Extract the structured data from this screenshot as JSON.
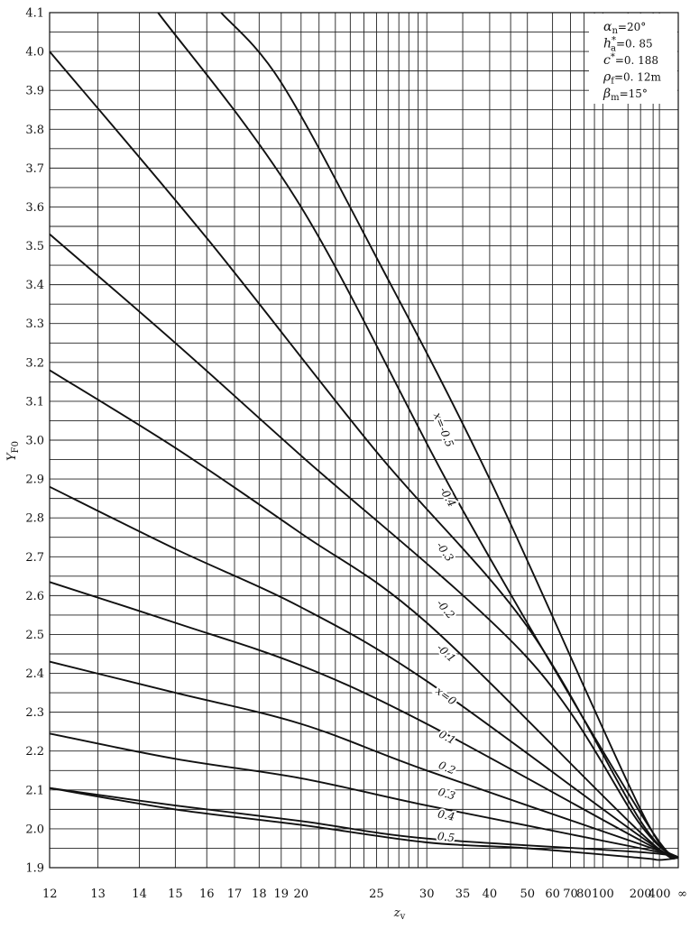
{
  "chart_data": {
    "type": "line",
    "title": "",
    "xlabel": "z",
    "xlabel_sub": "v",
    "ylabel": "Y",
    "ylabel_sub": "F0",
    "x_scale": "reciprocal",
    "xlim": [
      12,
      "∞"
    ],
    "ylim": [
      1.9,
      4.1
    ],
    "grid": true,
    "y_ticks": [
      "1.9",
      "2.0",
      "2.1",
      "2.2",
      "2.3",
      "2.4",
      "2.5",
      "2.6",
      "2.7",
      "2.8",
      "2.9",
      "3.0",
      "3.1",
      "3.2",
      "3.3",
      "3.4",
      "3.5",
      "3.6",
      "3.7",
      "3.8",
      "3.9",
      "4.0",
      "4.1"
    ],
    "x_ticks": [
      {
        "value": 12,
        "label": "12"
      },
      {
        "value": 13,
        "label": "13"
      },
      {
        "value": 14,
        "label": "14"
      },
      {
        "value": 15,
        "label": "15"
      },
      {
        "value": 16,
        "label": "16"
      },
      {
        "value": 17,
        "label": "17"
      },
      {
        "value": 18,
        "label": "18"
      },
      {
        "value": 19,
        "label": "19"
      },
      {
        "value": 20,
        "label": "20"
      },
      {
        "value": 25,
        "label": "25"
      },
      {
        "value": 30,
        "label": "30"
      },
      {
        "value": 35,
        "label": "35"
      },
      {
        "value": 40,
        "label": "40"
      },
      {
        "value": 50,
        "label": "50"
      },
      {
        "value": 60,
        "label": "60"
      },
      {
        "value": 70,
        "label": "70"
      },
      {
        "value": 80,
        "label": "80"
      },
      {
        "value": 100,
        "label": "100"
      },
      {
        "value": 200,
        "label": "200"
      },
      {
        "value": 400,
        "label": "400"
      },
      {
        "value": "inf",
        "label": "∞"
      }
    ],
    "x_gridlines": [
      12,
      13,
      14,
      15,
      16,
      17,
      18,
      19,
      20,
      21,
      22,
      23,
      24,
      25,
      26,
      27,
      28,
      29,
      30,
      35,
      40,
      45,
      50,
      60,
      70,
      80,
      90,
      100,
      150,
      200,
      300,
      400,
      "inf"
    ],
    "series": [
      {
        "name": "x=-0.5",
        "points": [
          [
            16.5,
            4.1
          ],
          [
            19,
            3.92
          ],
          [
            25,
            3.47
          ],
          [
            40,
            2.9
          ],
          [
            200,
            2.05
          ]
        ]
      },
      {
        "name": "-0.4",
        "points": [
          [
            14.5,
            4.1
          ],
          [
            20,
            3.6
          ],
          [
            35,
            2.82
          ],
          [
            200,
            2.04
          ]
        ]
      },
      {
        "name": "-0.3",
        "points": [
          [
            12,
            4.0
          ],
          [
            16,
            3.52
          ],
          [
            25,
            2.97
          ],
          [
            50,
            2.52
          ],
          [
            200,
            2.02
          ]
        ]
      },
      {
        "name": "-0.2",
        "points": [
          [
            12,
            3.53
          ],
          [
            15,
            3.25
          ],
          [
            20,
            2.96
          ],
          [
            50,
            2.44
          ],
          [
            200,
            2.01
          ]
        ]
      },
      {
        "name": "-0.1",
        "points": [
          [
            12,
            3.18
          ],
          [
            15,
            2.98
          ],
          [
            20,
            2.76
          ],
          [
            30,
            2.53
          ],
          [
            200,
            1.99
          ]
        ]
      },
      {
        "name": "x=0",
        "points": [
          [
            12,
            2.88
          ],
          [
            15,
            2.72
          ],
          [
            20,
            2.57
          ],
          [
            30,
            2.38
          ],
          [
            200,
            1.98
          ]
        ]
      },
      {
        "name": "0.1",
        "points": [
          [
            12,
            2.635
          ],
          [
            15,
            2.53
          ],
          [
            20,
            2.42
          ],
          [
            30,
            2.27
          ],
          [
            200,
            1.97
          ]
        ]
      },
      {
        "name": "0.2",
        "points": [
          [
            12,
            2.43
          ],
          [
            15,
            2.35
          ],
          [
            20,
            2.27
          ],
          [
            30,
            2.15
          ],
          [
            200,
            1.96
          ]
        ]
      },
      {
        "name": "0.3",
        "points": [
          [
            12,
            2.245
          ],
          [
            15,
            2.18
          ],
          [
            20,
            2.13
          ],
          [
            30,
            2.06
          ],
          [
            200,
            1.95
          ]
        ]
      },
      {
        "name": "0.4",
        "points": [
          [
            12,
            2.105
          ],
          [
            15,
            2.06
          ],
          [
            20,
            2.02
          ],
          [
            30,
            1.975
          ],
          [
            200,
            1.94
          ]
        ]
      },
      {
        "name": "0.5",
        "points": [
          [
            12,
            2.105
          ],
          [
            15,
            2.05
          ],
          [
            20,
            2.01
          ],
          [
            30,
            1.965
          ],
          [
            50,
            1.95
          ],
          [
            200,
            1.925
          ],
          [
            400,
            1.92
          ],
          [
            "inf",
            1.925
          ]
        ]
      }
    ],
    "convergence_point": [
      "inf",
      1.925
    ],
    "params": [
      {
        "sym": "α",
        "sub": "n",
        "sup": "",
        "val": "=20°"
      },
      {
        "sym": "h",
        "sub": "a",
        "sup": "*",
        "val": "=0. 85"
      },
      {
        "sym": "c",
        "sub": "",
        "sup": "*",
        "val": "=0. 188"
      },
      {
        "sym": "ρ",
        "sub": "f",
        "sup": "",
        "val": "=0. 12m"
      },
      {
        "sym": "β",
        "sub": "m",
        "sup": "",
        "val": "=15°"
      }
    ]
  }
}
